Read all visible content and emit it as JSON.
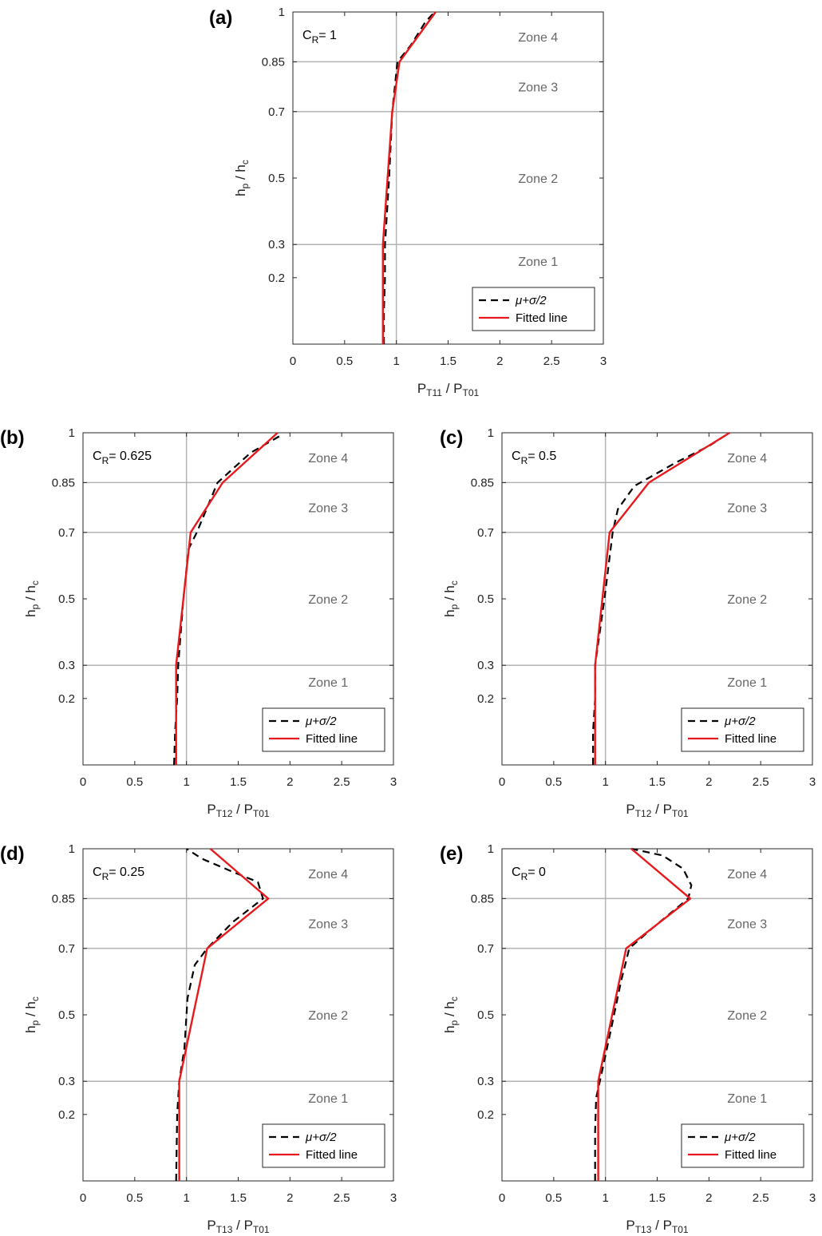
{
  "chart_data": [
    {
      "panel": "(a)",
      "type": "line",
      "annotation": {
        "main": "C",
        "sub": "R",
        "rest": "= 1"
      },
      "xlabel": {
        "p1": "P",
        "s1": "T11",
        "sep": " / P",
        "s2": "T01"
      },
      "ylabel": {
        "p1": "h",
        "s1": "p",
        "sep": " / h",
        "s2": "c"
      },
      "xlim": [
        0,
        3
      ],
      "ylim": [
        0,
        1
      ],
      "xticks": [
        "0",
        "0.5",
        "1",
        "1.5",
        "2",
        "2.5",
        "3"
      ],
      "yticks": [
        "0.2",
        "0.3",
        "0.5",
        "0.7",
        "0.85",
        "1"
      ],
      "zones": [
        "Zone 1",
        "Zone 2",
        "Zone 3",
        "Zone 4"
      ],
      "legend": [
        "μ+σ/2",
        "Fitted line"
      ],
      "series": [
        {
          "name": "μ+σ/2",
          "style": "dashed",
          "color": "#000000",
          "points": [
            [
              0.88,
              0.0
            ],
            [
              0.88,
              0.1
            ],
            [
              0.89,
              0.2
            ],
            [
              0.89,
              0.3
            ],
            [
              0.93,
              0.5
            ],
            [
              0.96,
              0.7
            ],
            [
              1.01,
              0.85
            ],
            [
              1.14,
              0.9
            ],
            [
              1.28,
              0.97
            ],
            [
              1.37,
              1.0
            ]
          ]
        },
        {
          "name": "Fitted line",
          "style": "solid",
          "color": "#e8191c",
          "points": [
            [
              0.87,
              0.0
            ],
            [
              0.87,
              0.3
            ],
            [
              0.96,
              0.7
            ],
            [
              1.03,
              0.85
            ],
            [
              1.38,
              1.0
            ]
          ]
        }
      ]
    },
    {
      "panel": "(b)",
      "type": "line",
      "annotation": {
        "main": "C",
        "sub": "R",
        "rest": "= 0.625"
      },
      "xlabel": {
        "p1": "P",
        "s1": "T12",
        "sep": " / P",
        "s2": "T01"
      },
      "ylabel": {
        "p1": "h",
        "s1": "p",
        "sep": " / h",
        "s2": "c"
      },
      "xlim": [
        0,
        3
      ],
      "ylim": [
        0,
        1
      ],
      "xticks": [
        "0",
        "0.5",
        "1",
        "1.5",
        "2",
        "2.5",
        "3"
      ],
      "yticks": [
        "0.2",
        "0.3",
        "0.5",
        "0.7",
        "0.85",
        "1"
      ],
      "zones": [
        "Zone 1",
        "Zone 2",
        "Zone 3",
        "Zone 4"
      ],
      "legend": [
        "μ+σ/2",
        "Fitted line"
      ],
      "series": [
        {
          "name": "μ+σ/2",
          "style": "dashed",
          "color": "#000000",
          "points": [
            [
              0.88,
              0.0
            ],
            [
              0.89,
              0.1
            ],
            [
              0.91,
              0.2
            ],
            [
              0.92,
              0.3
            ],
            [
              0.97,
              0.5
            ],
            [
              1.02,
              0.65
            ],
            [
              1.1,
              0.7
            ],
            [
              1.3,
              0.85
            ],
            [
              1.62,
              0.94
            ],
            [
              1.9,
              0.99
            ]
          ]
        },
        {
          "name": "Fitted line",
          "style": "solid",
          "color": "#e8191c",
          "points": [
            [
              0.9,
              0.0
            ],
            [
              0.9,
              0.3
            ],
            [
              1.04,
              0.7
            ],
            [
              1.35,
              0.85
            ],
            [
              1.88,
              1.0
            ]
          ]
        }
      ]
    },
    {
      "panel": "(c)",
      "type": "line",
      "annotation": {
        "main": "C",
        "sub": "R",
        "rest": "= 0.5"
      },
      "xlabel": {
        "p1": "P",
        "s1": "T12",
        "sep": " / P",
        "s2": "T01"
      },
      "ylabel": {
        "p1": "h",
        "s1": "p",
        "sep": " / h",
        "s2": "c"
      },
      "xlim": [
        0,
        3
      ],
      "ylim": [
        0,
        1
      ],
      "xticks": [
        "0",
        "0.5",
        "1",
        "1.5",
        "2",
        "2.5",
        "3"
      ],
      "yticks": [
        "0.2",
        "0.3",
        "0.5",
        "0.7",
        "0.85",
        "1"
      ],
      "zones": [
        "Zone 1",
        "Zone 2",
        "Zone 3",
        "Zone 4"
      ],
      "legend": [
        "μ+σ/2",
        "Fitted line"
      ],
      "series": [
        {
          "name": "μ+σ/2",
          "style": "dashed",
          "color": "#000000",
          "points": [
            [
              0.88,
              0.0
            ],
            [
              0.88,
              0.1
            ],
            [
              0.9,
              0.2
            ],
            [
              0.9,
              0.3
            ],
            [
              0.99,
              0.5
            ],
            [
              1.07,
              0.7
            ],
            [
              1.12,
              0.77
            ],
            [
              1.28,
              0.84
            ],
            [
              1.68,
              0.91
            ],
            [
              2.0,
              0.96
            ],
            [
              2.2,
              1.0
            ]
          ]
        },
        {
          "name": "Fitted line",
          "style": "solid",
          "color": "#e8191c",
          "points": [
            [
              0.9,
              0.0
            ],
            [
              0.9,
              0.3
            ],
            [
              1.04,
              0.7
            ],
            [
              1.42,
              0.85
            ],
            [
              2.2,
              1.0
            ]
          ]
        }
      ]
    },
    {
      "panel": "(d)",
      "type": "line",
      "annotation": {
        "main": "C",
        "sub": "R",
        "rest": "= 0.25"
      },
      "xlabel": {
        "p1": "P",
        "s1": "T13",
        "sep": " / P",
        "s2": "T01"
      },
      "ylabel": {
        "p1": "h",
        "s1": "p",
        "sep": " / h",
        "s2": "c"
      },
      "xlim": [
        0,
        3
      ],
      "ylim": [
        0,
        1
      ],
      "xticks": [
        "0",
        "0.5",
        "1",
        "1.5",
        "2",
        "2.5",
        "3"
      ],
      "yticks": [
        "0.2",
        "0.3",
        "0.5",
        "0.7",
        "0.85",
        "1"
      ],
      "zones": [
        "Zone 1",
        "Zone 2",
        "Zone 3",
        "Zone 4"
      ],
      "legend": [
        "μ+σ/2",
        "Fitted line"
      ],
      "series": [
        {
          "name": "μ+σ/2",
          "style": "dashed",
          "color": "#000000",
          "points": [
            [
              0.9,
              0.0
            ],
            [
              0.91,
              0.2
            ],
            [
              0.93,
              0.3
            ],
            [
              0.98,
              0.4
            ],
            [
              1.01,
              0.55
            ],
            [
              1.08,
              0.65
            ],
            [
              1.2,
              0.7
            ],
            [
              1.45,
              0.78
            ],
            [
              1.74,
              0.85
            ],
            [
              1.69,
              0.9
            ],
            [
              1.45,
              0.93
            ],
            [
              1.15,
              0.97
            ],
            [
              1.0,
              1.0
            ]
          ]
        },
        {
          "name": "Fitted line",
          "style": "solid",
          "color": "#e8191c",
          "points": [
            [
              0.93,
              0.0
            ],
            [
              0.93,
              0.3
            ],
            [
              1.2,
              0.7
            ],
            [
              1.79,
              0.85
            ],
            [
              1.23,
              1.0
            ]
          ]
        }
      ]
    },
    {
      "panel": "(e)",
      "type": "line",
      "annotation": {
        "main": "C",
        "sub": "R",
        "rest": "= 0"
      },
      "xlabel": {
        "p1": "P",
        "s1": "T13",
        "sep": " / P",
        "s2": "T01"
      },
      "ylabel": {
        "p1": "h",
        "s1": "p",
        "sep": " / h",
        "s2": "c"
      },
      "xlim": [
        0,
        3
      ],
      "ylim": [
        0,
        1
      ],
      "xticks": [
        "0",
        "0.5",
        "1",
        "1.5",
        "2",
        "2.5",
        "3"
      ],
      "yticks": [
        "0.2",
        "0.3",
        "0.5",
        "0.7",
        "0.85",
        "1"
      ],
      "zones": [
        "Zone 1",
        "Zone 2",
        "Zone 3",
        "Zone 4"
      ],
      "legend": [
        "μ+σ/2",
        "Fitted line"
      ],
      "series": [
        {
          "name": "μ+σ/2",
          "style": "dashed",
          "color": "#000000",
          "points": [
            [
              0.9,
              0.0
            ],
            [
              0.9,
              0.15
            ],
            [
              0.91,
              0.25
            ],
            [
              0.96,
              0.32
            ],
            [
              1.05,
              0.45
            ],
            [
              1.15,
              0.6
            ],
            [
              1.23,
              0.7
            ],
            [
              1.45,
              0.76
            ],
            [
              1.8,
              0.85
            ],
            [
              1.83,
              0.89
            ],
            [
              1.75,
              0.94
            ],
            [
              1.55,
              0.98
            ],
            [
              1.25,
              1.0
            ]
          ]
        },
        {
          "name": "Fitted line",
          "style": "solid",
          "color": "#e8191c",
          "points": [
            [
              0.93,
              0.0
            ],
            [
              0.93,
              0.3
            ],
            [
              1.2,
              0.7
            ],
            [
              1.82,
              0.85
            ],
            [
              1.25,
              1.0
            ]
          ]
        }
      ]
    }
  ]
}
